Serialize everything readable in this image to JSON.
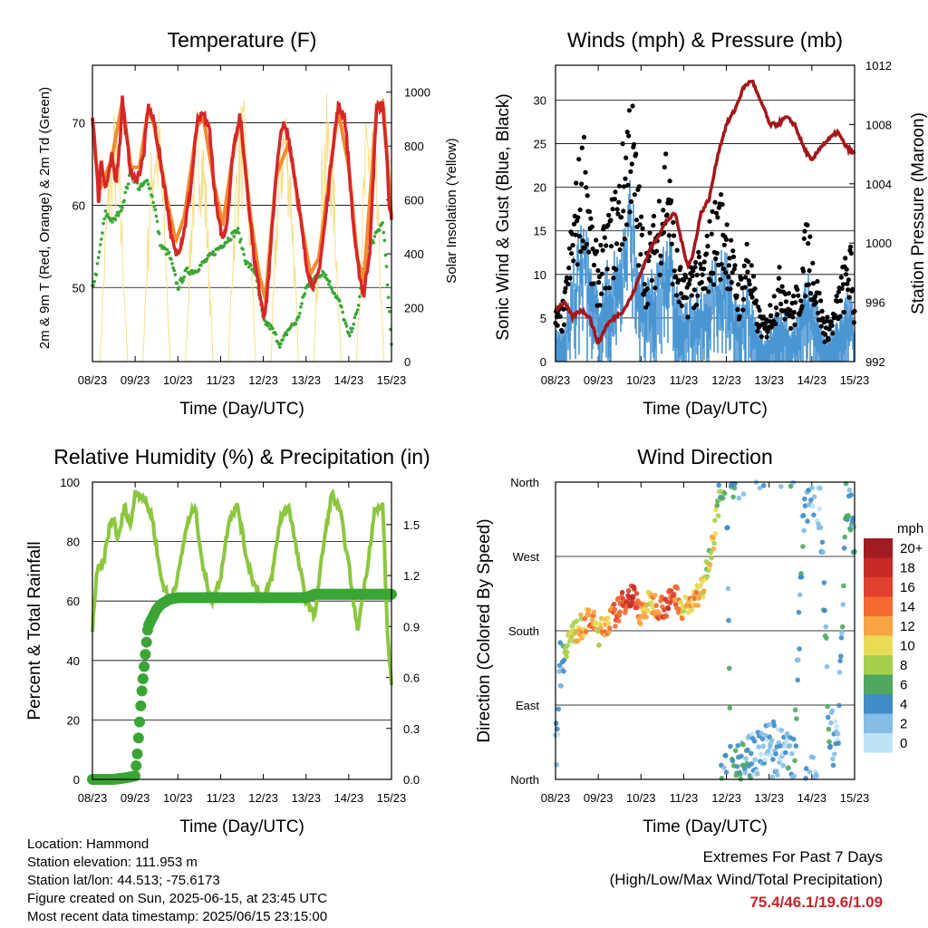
{
  "panels": {
    "temperature": {
      "title": "Temperature (F)",
      "ylabel_left": "2m & 9m T (Red, Orange) & 2m Td (Green)",
      "ylabel_right": "Solar Insolation (Yellow)",
      "xlabel": "Time (Day/UTC)"
    },
    "winds": {
      "title": "Winds (mph) & Pressure (mb)",
      "ylabel_left": "Sonic Wind & Gust (Blue, Black)",
      "ylabel_right": "Station Pressure (Maroon)",
      "xlabel": "Time (Day/UTC)"
    },
    "humidity": {
      "title": "Relative Humidity (%) & Precipitation (in)",
      "ylabel_left": "Percent & Total Rainfall",
      "xlabel": "Time (Day/UTC)"
    },
    "direction": {
      "title": "Wind Direction",
      "ylabel_left": "Direction (Colored By Speed)",
      "xlabel": "Time (Day/UTC)",
      "colorbar_title": "mph",
      "colorbar_labels": [
        "20+",
        "18",
        "16",
        "14",
        "12",
        "10",
        "8",
        "6",
        "4",
        "2",
        "0"
      ],
      "colorbar_colors": [
        "#a01c20",
        "#c62a24",
        "#e0402e",
        "#f26a30",
        "#f9a443",
        "#e8dc56",
        "#a4d04c",
        "#4fa85e",
        "#3f8cc6",
        "#84bde6",
        "#bfe3f6"
      ]
    }
  },
  "info": {
    "location": "Location: Hammond",
    "elevation": "Station elevation: 111.953 m",
    "latlon": "Station lat/lon: 44.513; -75.6173",
    "created": "Figure created on Sun, 2025-06-15, at 23:45 UTC",
    "latest": "Most recent data timestamp: 2025/06/15 23:15:00"
  },
  "extremes": {
    "heading": "Extremes For Past 7 Days",
    "subheading": "(High/Low/Max Wind/Total Precipitation)",
    "values": "75.4/46.1/19.6/1.09"
  },
  "chart_data": [
    {
      "type": "line",
      "title": "Temperature (F)",
      "xlabel": "Time (Day/UTC)",
      "ylabel": "2m & 9m T (Red, Orange) & 2m Td (Green)",
      "y2label": "Solar Insolation (Yellow)",
      "x_ticks": [
        "08/23",
        "09/23",
        "10/23",
        "11/23",
        "12/23",
        "13/23",
        "14/23",
        "15/23"
      ],
      "x_range": [
        0,
        7
      ],
      "ylim": [
        41,
        77
      ],
      "y_ticks": [
        50,
        60,
        70
      ],
      "y2lim": [
        0,
        1100
      ],
      "y2_ticks": [
        0,
        200,
        400,
        600,
        800,
        1000
      ],
      "series": [
        {
          "name": "2m T",
          "color": "#d62728",
          "axis": "left",
          "x": [
            0,
            0.05,
            0.15,
            0.2,
            0.3,
            0.4,
            0.45,
            0.55,
            0.65,
            0.7,
            0.8,
            0.9,
            1.0,
            1.1,
            1.2,
            1.3,
            1.45,
            1.6,
            1.75,
            1.85,
            1.95,
            2.05,
            2.15,
            2.3,
            2.45,
            2.6,
            2.75,
            2.85,
            2.95,
            3.05,
            3.15,
            3.3,
            3.45,
            3.55,
            3.7,
            3.8,
            3.9,
            4.0,
            4.05,
            4.15,
            4.3,
            4.45,
            4.6,
            4.75,
            4.9,
            5.0,
            5.1,
            5.2,
            5.3,
            5.45,
            5.6,
            5.75,
            5.9,
            6.0,
            6.1,
            6.2,
            6.35,
            6.5,
            6.65,
            6.8,
            6.9,
            6.95,
            7.0
          ],
          "y": [
            71,
            68,
            60,
            66,
            62,
            64,
            66,
            63,
            68,
            73,
            68,
            64,
            63,
            64,
            66,
            72,
            70,
            65,
            60,
            56,
            54,
            55,
            57,
            62,
            70,
            71,
            69,
            62,
            58,
            56,
            58,
            67,
            71,
            66,
            58,
            53,
            50,
            47,
            47,
            53,
            64,
            70,
            68,
            63,
            57,
            53,
            51,
            50,
            52,
            58,
            66,
            72,
            71,
            65,
            58,
            53,
            49,
            55,
            72,
            72,
            65,
            60,
            58
          ]
        },
        {
          "name": "9m T",
          "color": "#f28b31",
          "axis": "left",
          "x": [
            0,
            0.15,
            0.3,
            0.45,
            0.7,
            0.9,
            1.1,
            1.3,
            1.45,
            1.75,
            1.95,
            2.15,
            2.45,
            2.6,
            2.85,
            3.05,
            3.3,
            3.45,
            3.7,
            3.9,
            4.05,
            4.3,
            4.6,
            4.9,
            5.1,
            5.3,
            5.6,
            5.75,
            6.0,
            6.2,
            6.35,
            6.65,
            6.8,
            7.0
          ],
          "y": [
            70,
            61,
            63,
            65,
            72,
            64,
            64,
            71,
            69,
            60,
            55,
            58,
            69,
            70,
            62,
            57,
            66,
            70,
            58,
            51,
            48,
            63,
            67,
            57,
            51,
            53,
            65,
            71,
            64,
            53,
            50,
            71,
            72,
            58
          ]
        },
        {
          "name": "2m Td",
          "color": "#3aa535",
          "axis": "left",
          "x": [
            0,
            0.1,
            0.3,
            0.5,
            0.7,
            0.9,
            1.1,
            1.3,
            1.45,
            1.6,
            1.8,
            2.0,
            2.2,
            2.4,
            2.6,
            2.8,
            3.0,
            3.2,
            3.4,
            3.6,
            3.8,
            4.0,
            4.2,
            4.4,
            4.6,
            4.8,
            5.0,
            5.2,
            5.4,
            5.6,
            5.8,
            6.0,
            6.2,
            6.4,
            6.6,
            6.8,
            6.9,
            7.0
          ],
          "y": [
            50,
            52,
            59,
            58,
            60,
            64,
            62,
            63,
            60,
            55,
            54,
            50,
            52,
            52,
            53,
            54,
            55,
            56,
            57,
            53,
            52,
            46,
            45,
            43,
            45,
            46,
            50,
            51,
            52,
            50,
            48,
            44,
            47,
            54,
            56,
            58,
            51,
            43
          ]
        },
        {
          "name": "Solar Insolation",
          "color": "#f7e089",
          "axis": "right",
          "daily_peaks_x": [
            0.5,
            1.5,
            2.5,
            3.5,
            4.5,
            5.5,
            6.5
          ],
          "daily_peaks_y": [
            950,
            1000,
            1000,
            1000,
            1030,
            1000,
            1010
          ]
        }
      ]
    },
    {
      "type": "scatter",
      "title": "Winds (mph) & Pressure (mb)",
      "xlabel": "Time (Day/UTC)",
      "ylabel": "Sonic Wind & Gust (Blue, Black)",
      "y2label": "Station Pressure (Maroon)",
      "x_ticks": [
        "08/23",
        "09/23",
        "10/23",
        "11/23",
        "12/23",
        "13/23",
        "14/23",
        "15/23"
      ],
      "x_range": [
        0,
        7
      ],
      "ylim": [
        0,
        34
      ],
      "y_ticks": [
        0,
        5,
        10,
        15,
        20,
        25,
        30
      ],
      "y2lim": [
        992,
        1012
      ],
      "y2_ticks": [
        992,
        996,
        1000,
        1004,
        1008,
        1012
      ],
      "series": [
        {
          "name": "Gust",
          "color": "#000000",
          "axis": "left",
          "x": [
            0,
            0.2,
            0.4,
            0.55,
            0.7,
            0.85,
            1.0,
            1.2,
            1.45,
            1.6,
            1.75,
            1.9,
            2.1,
            2.35,
            2.6,
            2.8,
            3.0,
            3.25,
            3.45,
            3.6,
            3.8,
            4.0,
            4.15,
            4.3,
            4.5,
            4.7,
            4.9,
            5.1,
            5.3,
            5.5,
            5.7,
            5.9,
            6.1,
            6.3,
            6.5,
            6.7,
            6.9,
            7.0
          ],
          "y": [
            5,
            6,
            15,
            20,
            24,
            13,
            11,
            14,
            18,
            22,
            29,
            20,
            11,
            15,
            23,
            12,
            8,
            11,
            10,
            14,
            17,
            16,
            11,
            8,
            13,
            6,
            4,
            7,
            10,
            6,
            8,
            15,
            9,
            4,
            5,
            9,
            12,
            6
          ]
        },
        {
          "name": "Sonic Wind",
          "color": "#4a96d3",
          "axis": "left",
          "x": [
            0,
            0.2,
            0.4,
            0.55,
            0.7,
            0.85,
            1.0,
            1.2,
            1.45,
            1.6,
            1.75,
            1.9,
            2.1,
            2.35,
            2.6,
            2.8,
            3.0,
            3.25,
            3.45,
            3.6,
            3.8,
            4.0,
            4.15,
            4.3,
            4.5,
            4.7,
            4.9,
            5.1,
            5.3,
            5.5,
            5.7,
            5.9,
            6.1,
            6.3,
            6.5,
            6.7,
            6.9,
            7.0
          ],
          "y": [
            3,
            3,
            9,
            12,
            14,
            8,
            7,
            9,
            11,
            13,
            17,
            12,
            7,
            9,
            14,
            8,
            5,
            7,
            6,
            9,
            10,
            10,
            7,
            5,
            8,
            4,
            2,
            4,
            6,
            3,
            5,
            8,
            6,
            2,
            3,
            5,
            7,
            3
          ]
        },
        {
          "name": "Station Pressure",
          "color": "#a3171b",
          "axis": "right",
          "x": [
            0,
            0.2,
            0.4,
            0.6,
            0.8,
            1.0,
            1.2,
            1.4,
            1.6,
            1.8,
            2.0,
            2.2,
            2.4,
            2.6,
            2.8,
            3.0,
            3.1,
            3.2,
            3.4,
            3.6,
            3.8,
            4.0,
            4.2,
            4.4,
            4.6,
            4.8,
            4.9,
            5.0,
            5.2,
            5.4,
            5.6,
            5.8,
            6.0,
            6.2,
            6.4,
            6.6,
            6.8,
            7.0
          ],
          "y": [
            995.5,
            996,
            995,
            995.5,
            995,
            993.2,
            994.5,
            995,
            995.5,
            996.5,
            998,
            999.5,
            1000.5,
            1001.5,
            1002,
            999.5,
            998.5,
            999,
            1002,
            1003,
            1006,
            1008,
            1009,
            1010.5,
            1011,
            1009.5,
            1009,
            1008,
            1008,
            1008.5,
            1008,
            1006.5,
            1005.5,
            1006.5,
            1007,
            1007.5,
            1006.5,
            1006
          ]
        }
      ]
    },
    {
      "type": "line",
      "title": "Relative Humidity (%) & Precipitation (in)",
      "xlabel": "Time (Day/UTC)",
      "ylabel": "Percent & Total Rainfall",
      "x_ticks": [
        "08/23",
        "09/23",
        "10/23",
        "11/23",
        "12/23",
        "13/23",
        "14/23",
        "15/23"
      ],
      "x_range": [
        0,
        7
      ],
      "ylim": [
        0,
        100
      ],
      "y_ticks": [
        0,
        20,
        40,
        60,
        80,
        100
      ],
      "y2lim": [
        0,
        1.75
      ],
      "y2_ticks": [
        "0.0",
        "0.3",
        "0.6",
        "0.9",
        "1.2",
        "1.5"
      ],
      "series": [
        {
          "name": "Relative Humidity",
          "color": "#8cc63f",
          "axis": "left",
          "x": [
            0,
            0.1,
            0.25,
            0.4,
            0.5,
            0.6,
            0.75,
            0.9,
            1.0,
            1.2,
            1.4,
            1.6,
            1.8,
            2.0,
            2.2,
            2.4,
            2.6,
            2.8,
            3.0,
            3.2,
            3.4,
            3.6,
            3.8,
            4.0,
            4.2,
            4.4,
            4.6,
            4.8,
            5.0,
            5.2,
            5.4,
            5.6,
            5.8,
            6.0,
            6.2,
            6.4,
            6.6,
            6.8,
            6.9,
            7.0
          ],
          "y": [
            50,
            70,
            72,
            85,
            88,
            80,
            92,
            85,
            97,
            95,
            88,
            68,
            60,
            68,
            85,
            92,
            70,
            60,
            68,
            88,
            92,
            75,
            65,
            60,
            68,
            88,
            92,
            75,
            60,
            55,
            78,
            96,
            90,
            72,
            50,
            68,
            90,
            92,
            50,
            32
          ]
        },
        {
          "name": "Total Rainfall",
          "color": "#3aa535",
          "axis": "right",
          "x": [
            0,
            0.5,
            0.8,
            1.0,
            1.05,
            1.15,
            1.3,
            1.5,
            1.6,
            1.8,
            2.0,
            3.0,
            4.0,
            5.0,
            5.2,
            6.0,
            7.0
          ],
          "y": [
            0,
            0,
            0.01,
            0.02,
            0.15,
            0.5,
            0.9,
            1.0,
            1.03,
            1.06,
            1.07,
            1.07,
            1.07,
            1.07,
            1.09,
            1.09,
            1.09
          ]
        }
      ]
    },
    {
      "type": "scatter",
      "title": "Wind Direction",
      "xlabel": "Time (Day/UTC)",
      "ylabel": "Direction (Colored By Speed)",
      "x_ticks": [
        "08/23",
        "09/23",
        "10/23",
        "11/23",
        "12/23",
        "13/23",
        "14/23",
        "15/23"
      ],
      "x_range": [
        0,
        7
      ],
      "y_ticks": [
        "North",
        "East",
        "South",
        "West",
        "North"
      ],
      "ylim": [
        0,
        360
      ],
      "colorbar": {
        "label": "mph",
        "levels": [
          "0",
          "2",
          "4",
          "6",
          "8",
          "10",
          "12",
          "14",
          "16",
          "18",
          "20+"
        ]
      },
      "series": [
        {
          "name": "Wind Direction",
          "x": [
            0,
            0.1,
            0.3,
            0.5,
            0.7,
            0.85,
            1.0,
            1.2,
            1.4,
            1.6,
            1.8,
            2.0,
            2.2,
            2.4,
            2.6,
            2.8,
            3.0,
            3.2,
            3.4,
            3.55,
            3.7,
            3.85,
            4.0,
            4.1,
            4.3,
            4.6,
            4.8,
            5.0,
            5.3,
            5.6,
            5.8,
            6.0,
            6.2,
            6.4,
            6.6,
            6.8,
            7.0
          ],
          "y": [
            20,
            140,
            170,
            180,
            190,
            195,
            175,
            190,
            200,
            215,
            225,
            200,
            215,
            210,
            210,
            225,
            205,
            215,
            225,
            260,
            290,
            350,
            355,
            20,
            10,
            30,
            20,
            40,
            25,
            30,
            330,
            360,
            320,
            60,
            40,
            330,
            300
          ],
          "speed": [
            2,
            3,
            8,
            10,
            12,
            14,
            10,
            12,
            14,
            16,
            18,
            12,
            10,
            14,
            16,
            14,
            10,
            12,
            12,
            8,
            10,
            6,
            4,
            6,
            4,
            3,
            2,
            2,
            2,
            4,
            3,
            2,
            3,
            4,
            2,
            6,
            4
          ]
        }
      ]
    }
  ]
}
